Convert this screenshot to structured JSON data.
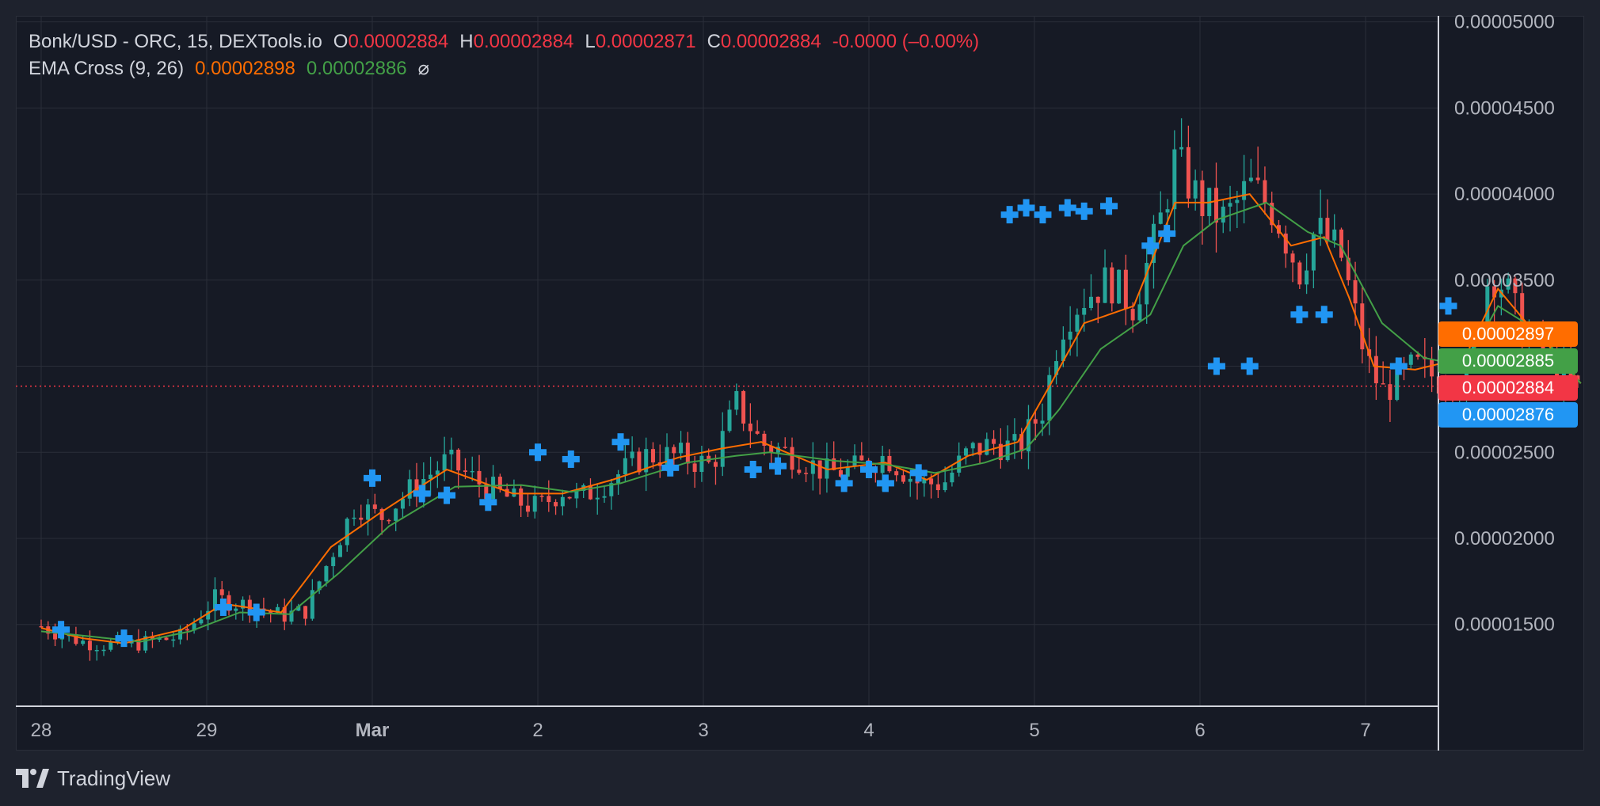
{
  "legend": {
    "symbol": "Bonk/USD - ORC, 15, DEXTools.io",
    "o_label": "O",
    "o_value": "0.00002884",
    "h_label": "H",
    "h_value": "0.00002884",
    "l_label": "L",
    "l_value": "0.00002871",
    "c_label": "C",
    "c_value": "0.00002884",
    "change": "-0.0000 (–0.00%)",
    "indicator_name": "EMA Cross (9, 26)",
    "ema_fast_value": "0.00002898",
    "ema_slow_value": "0.00002886",
    "hide_glyph": "⌀"
  },
  "price_tags": [
    {
      "label": "0.00002897",
      "color": "#ff6d00"
    },
    {
      "label": "0.00002885",
      "color": "#43a047"
    },
    {
      "label": "0.00002884",
      "color": "#f23645"
    },
    {
      "label": "0.00002876",
      "color": "#2196f3"
    }
  ],
  "footer": {
    "brand": "TradingView"
  },
  "colors": {
    "background": "#161a25",
    "grid": "#2a2e39",
    "up_candle": "#26a69a",
    "down_candle": "#ef5350",
    "ema_fast": "#ff6d00",
    "ema_slow": "#43a047",
    "cross_marker": "#2196f3",
    "last_price_line": "#f23645"
  },
  "chart_data": {
    "type": "line",
    "title": "Bonk/USD - ORC, 15, DEXTools.io",
    "xlabel": "",
    "ylabel": "",
    "x_ticks": [
      "28",
      "29",
      "Mar",
      "2",
      "3",
      "4",
      "5",
      "6",
      "7"
    ],
    "y_ticks": [
      "0.00001500",
      "0.00002000",
      "0.00002500",
      "0.00003000",
      "0.00003500",
      "0.00004000",
      "0.00004500",
      "0.00005000"
    ],
    "y_range": [
      1.025e-05,
      5.035e-05
    ],
    "x_range_days": [
      0,
      8.85
    ],
    "grid": true,
    "last_price": 2.884e-05,
    "series": [
      {
        "name": "Price",
        "x": [
          0,
          0.1,
          0.25,
          0.4,
          0.6,
          0.85,
          1.05,
          1.3,
          1.45,
          1.6,
          1.75,
          1.9,
          2.05,
          2.25,
          2.45,
          2.65,
          2.85,
          3.0,
          3.15,
          3.25,
          3.45,
          3.65,
          3.85,
          4.05,
          4.2,
          4.35,
          4.45,
          4.55,
          4.75,
          4.9,
          5.1,
          5.3,
          5.45,
          5.6,
          5.75,
          5.9,
          6.05,
          6.15,
          6.2,
          6.3,
          6.45,
          6.6,
          6.75,
          6.85,
          7.0,
          7.15,
          7.3,
          7.45,
          7.6,
          7.7,
          7.85,
          8.0,
          8.1,
          8.3,
          8.45,
          8.6,
          8.75,
          8.85,
          8.95,
          9.05,
          9.2,
          9.3
        ],
        "y": [
          1.49e-05,
          1.45e-05,
          1.4e-05,
          1.38e-05,
          1.39e-05,
          1.43e-05,
          1.65e-05,
          1.6e-05,
          1.55e-05,
          1.58e-05,
          1.9e-05,
          2.2e-05,
          2.12e-05,
          2.3e-05,
          2.45e-05,
          2.32e-05,
          2.22e-05,
          2.18e-05,
          2.28e-05,
          2.23e-05,
          2.35e-05,
          2.48e-05,
          2.48e-05,
          2.42e-05,
          2.78e-05,
          2.55e-05,
          2.52e-05,
          2.48e-05,
          2.38e-05,
          2.4e-05,
          2.48e-05,
          2.32e-05,
          2.32e-05,
          2.5e-05,
          2.55e-05,
          2.52e-05,
          2.75e-05,
          3.2e-05,
          3.3e-05,
          3.4e-05,
          3.5e-05,
          3.35e-05,
          3.8e-05,
          4.2e-05,
          3.95e-05,
          3.85e-05,
          4.05e-05,
          3.9e-05,
          3.55e-05,
          3.8e-05,
          3.65e-05,
          3.05e-05,
          2.85e-05,
          3e-05,
          2.92e-05,
          2.9e-05,
          3.55e-05,
          3.45e-05,
          3.2e-05,
          3.1e-05,
          2.95e-05,
          2.85e-05
        ]
      },
      {
        "name": "EMA 9",
        "x": [
          0,
          0.25,
          0.5,
          0.85,
          1.1,
          1.45,
          1.75,
          2.05,
          2.45,
          2.85,
          3.15,
          3.45,
          3.85,
          4.1,
          4.35,
          4.75,
          5.1,
          5.35,
          5.6,
          5.9,
          6.1,
          6.3,
          6.6,
          6.85,
          7.05,
          7.3,
          7.55,
          7.75,
          7.9,
          8.05,
          8.3,
          8.6,
          8.8,
          9.0,
          9.2,
          9.3
        ],
        "y": [
          1.48e-05,
          1.42e-05,
          1.39e-05,
          1.47e-05,
          1.62e-05,
          1.57e-05,
          1.95e-05,
          2.15e-05,
          2.4e-05,
          2.26e-05,
          2.26e-05,
          2.34e-05,
          2.47e-05,
          2.52e-05,
          2.56e-05,
          2.4e-05,
          2.44e-05,
          2.34e-05,
          2.48e-05,
          2.56e-05,
          2.9e-05,
          3.25e-05,
          3.35e-05,
          3.95e-05,
          3.95e-05,
          4e-05,
          3.7e-05,
          3.75e-05,
          3.4e-05,
          3e-05,
          2.98e-05,
          3.05e-05,
          3.45e-05,
          3.22e-05,
          3.03e-05,
          2.9e-05
        ]
      },
      {
        "name": "EMA 26",
        "x": [
          0,
          0.3,
          0.6,
          0.9,
          1.2,
          1.5,
          1.8,
          2.1,
          2.5,
          2.9,
          3.2,
          3.5,
          3.9,
          4.2,
          4.4,
          4.8,
          5.1,
          5.4,
          5.7,
          5.95,
          6.15,
          6.4,
          6.7,
          6.9,
          7.1,
          7.4,
          7.65,
          7.85,
          8.1,
          8.35,
          8.6,
          8.8,
          9.05,
          9.3
        ],
        "y": [
          1.46e-05,
          1.43e-05,
          1.4e-05,
          1.46e-05,
          1.57e-05,
          1.56e-05,
          1.8e-05,
          2.07e-05,
          2.3e-05,
          2.31e-05,
          2.27e-05,
          2.32e-05,
          2.44e-05,
          2.48e-05,
          2.5e-05,
          2.45e-05,
          2.43e-05,
          2.38e-05,
          2.44e-05,
          2.52e-05,
          2.75e-05,
          3.1e-05,
          3.3e-05,
          3.7e-05,
          3.85e-05,
          3.95e-05,
          3.78e-05,
          3.7e-05,
          3.25e-05,
          3.05e-05,
          3e-05,
          3.35e-05,
          3.2e-05,
          2.9e-05
        ]
      }
    ],
    "cross_markers_x": [
      0.12,
      0.5,
      1.1,
      1.3,
      2.0,
      2.3,
      2.45,
      2.7,
      3.0,
      3.2,
      3.5,
      3.8,
      4.3,
      4.45,
      4.85,
      5.0,
      5.1,
      5.3,
      5.85,
      5.95,
      6.05,
      6.2,
      6.3,
      6.45,
      6.7,
      6.8,
      7.1,
      7.3,
      7.6,
      7.75,
      8.2,
      8.5,
      9.0,
      9.2
    ],
    "cross_markers_y": [
      1.47e-05,
      1.42e-05,
      1.6e-05,
      1.57e-05,
      2.35e-05,
      2.26e-05,
      2.25e-05,
      2.21e-05,
      2.5e-05,
      2.46e-05,
      2.56e-05,
      2.41e-05,
      2.4e-05,
      2.42e-05,
      2.32e-05,
      2.4e-05,
      2.32e-05,
      2.38e-05,
      3.88e-05,
      3.92e-05,
      3.88e-05,
      3.92e-05,
      3.9e-05,
      3.93e-05,
      3.7e-05,
      3.77e-05,
      3e-05,
      3e-05,
      3.3e-05,
      3.3e-05,
      3e-05,
      3.35e-05,
      2.88e-05,
      2.86e-05
    ]
  }
}
